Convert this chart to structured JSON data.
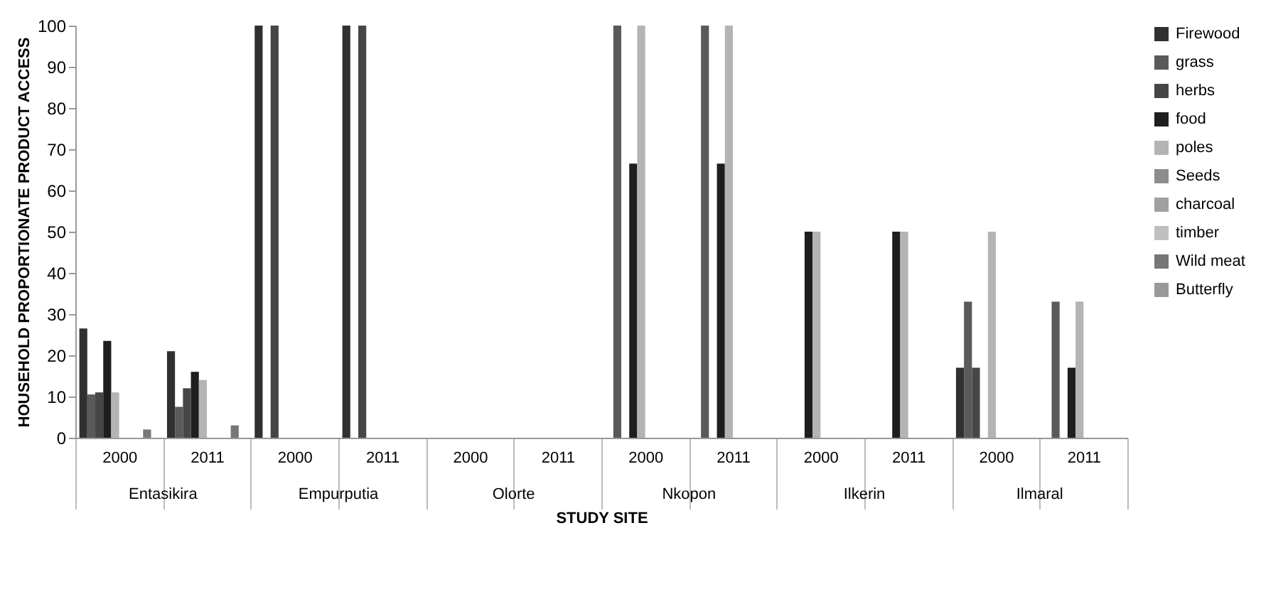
{
  "chart_data": {
    "type": "bar",
    "xlabel": "STUDY SITE",
    "ylabel": "HOUSEHOLD PROPORTIONATE PRODUCT ACCESS",
    "categories": [
      "2000",
      "2011",
      "2000",
      "2011",
      "2000",
      "2011",
      "2000",
      "2011",
      "2000",
      "2011",
      "2000",
      "2011"
    ],
    "annotations": [
      "Entasikira",
      "Empurputia",
      "Olorte",
      "Nkopon",
      "Ilkerin",
      "Ilmaral"
    ],
    "series": [
      {
        "name": "Firewood",
        "color": "#303030",
        "values": [
          26.5,
          21,
          100,
          100,
          0,
          0,
          0,
          0,
          0,
          0,
          17,
          0
        ]
      },
      {
        "name": "grass",
        "color": "#5a5a5a",
        "values": [
          10.5,
          7.5,
          0,
          0,
          0,
          0,
          100,
          100,
          0,
          0,
          33,
          33
        ]
      },
      {
        "name": "herbs",
        "color": "#464646",
        "values": [
          11,
          12,
          100,
          100,
          0,
          0,
          0,
          0,
          0,
          0,
          17,
          0
        ]
      },
      {
        "name": "food",
        "color": "#1e1e1e",
        "values": [
          23.5,
          16,
          0,
          0,
          0,
          0,
          66.5,
          66.5,
          50,
          50,
          0,
          17
        ]
      },
      {
        "name": "poles",
        "color": "#b4b4b4",
        "values": [
          11,
          14,
          0,
          0,
          0,
          0,
          100,
          100,
          50,
          50,
          50,
          33
        ]
      },
      {
        "name": "Seeds",
        "color": "#8c8c8c",
        "values": [
          0,
          0,
          0,
          0,
          0,
          0,
          0,
          0,
          0,
          0,
          0,
          0
        ]
      },
      {
        "name": "charcoal",
        "color": "#a0a0a0",
        "values": [
          0,
          0,
          0,
          0,
          0,
          0,
          0,
          0,
          0,
          0,
          0,
          0
        ]
      },
      {
        "name": "timber",
        "color": "#c0c0c0",
        "values": [
          0,
          0,
          0,
          0,
          0,
          0,
          0,
          0,
          0,
          0,
          0,
          0
        ]
      },
      {
        "name": "Wild meat",
        "color": "#777777",
        "values": [
          2,
          3,
          0,
          0,
          0,
          0,
          0,
          0,
          0,
          0,
          0,
          0
        ]
      },
      {
        "name": "Butterfly",
        "color": "#999999",
        "values": [
          0,
          0,
          0,
          0,
          0,
          0,
          0,
          0,
          0,
          0,
          0,
          0
        ]
      }
    ],
    "ylim": [
      0,
      100
    ],
    "yticks": [
      0,
      10,
      20,
      30,
      40,
      50,
      60,
      70,
      80,
      90,
      100
    ],
    "grid": false,
    "legend": "right"
  }
}
